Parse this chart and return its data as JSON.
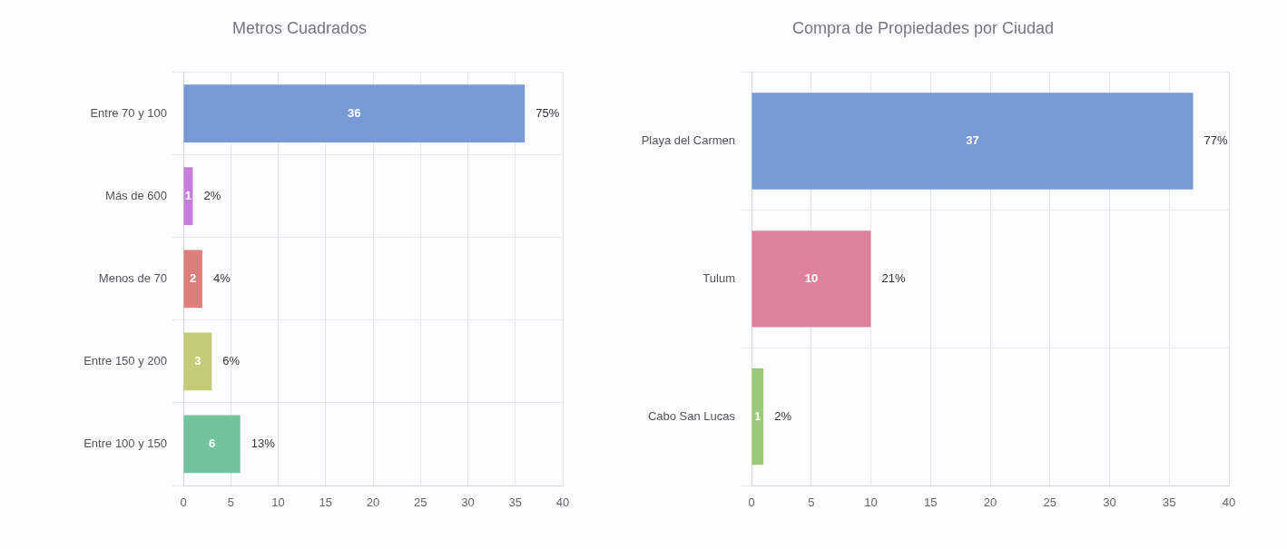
{
  "chart_data": [
    {
      "type": "bar",
      "orientation": "horizontal",
      "title": "Metros Cuadrados",
      "categories": [
        "Entre 70 y 100",
        "Más de 600",
        "Menos de 70",
        "Entre 150 y 200",
        "Entre 100 y 150"
      ],
      "values": [
        36,
        1,
        2,
        3,
        6
      ],
      "colors": [
        "#7799d6",
        "#c67fdb",
        "#dd7f7a",
        "#c4cc78",
        "#72c49c"
      ],
      "xlim": [
        0,
        40
      ],
      "xticks": [
        0,
        5,
        10,
        15,
        20,
        25,
        30,
        35,
        40
      ],
      "grid": true,
      "data_labels": true,
      "annotations": [
        {
          "text": "75%",
          "x": 36,
          "y": "Entre 70 y 100"
        },
        {
          "text": "2%",
          "x": 1,
          "y": "Más de 600"
        },
        {
          "text": "4%",
          "x": 2,
          "y": "Menos de 70"
        },
        {
          "text": "6%",
          "x": 3,
          "y": "Entre 150 y 200"
        },
        {
          "text": "13%",
          "x": 6,
          "y": "Entre 100 y 150"
        }
      ]
    },
    {
      "type": "bar",
      "orientation": "horizontal",
      "title": "Compra de Propiedades por Ciudad",
      "categories": [
        "Playa del Carmen",
        "Tulum",
        "Cabo San Lucas"
      ],
      "values": [
        37,
        10,
        1
      ],
      "colors": [
        "#7799d6",
        "#dc829d",
        "#9ac97a"
      ],
      "xlim": [
        0,
        40
      ],
      "xticks": [
        0,
        5,
        10,
        15,
        20,
        25,
        30,
        35,
        40
      ],
      "grid": true,
      "data_labels": true,
      "annotations": [
        {
          "text": "77%",
          "x": 37,
          "y": "Playa del Carmen"
        },
        {
          "text": "21%",
          "x": 10,
          "y": "Tulum"
        },
        {
          "text": "2%",
          "x": 1,
          "y": "Cabo San Lucas"
        }
      ]
    }
  ]
}
